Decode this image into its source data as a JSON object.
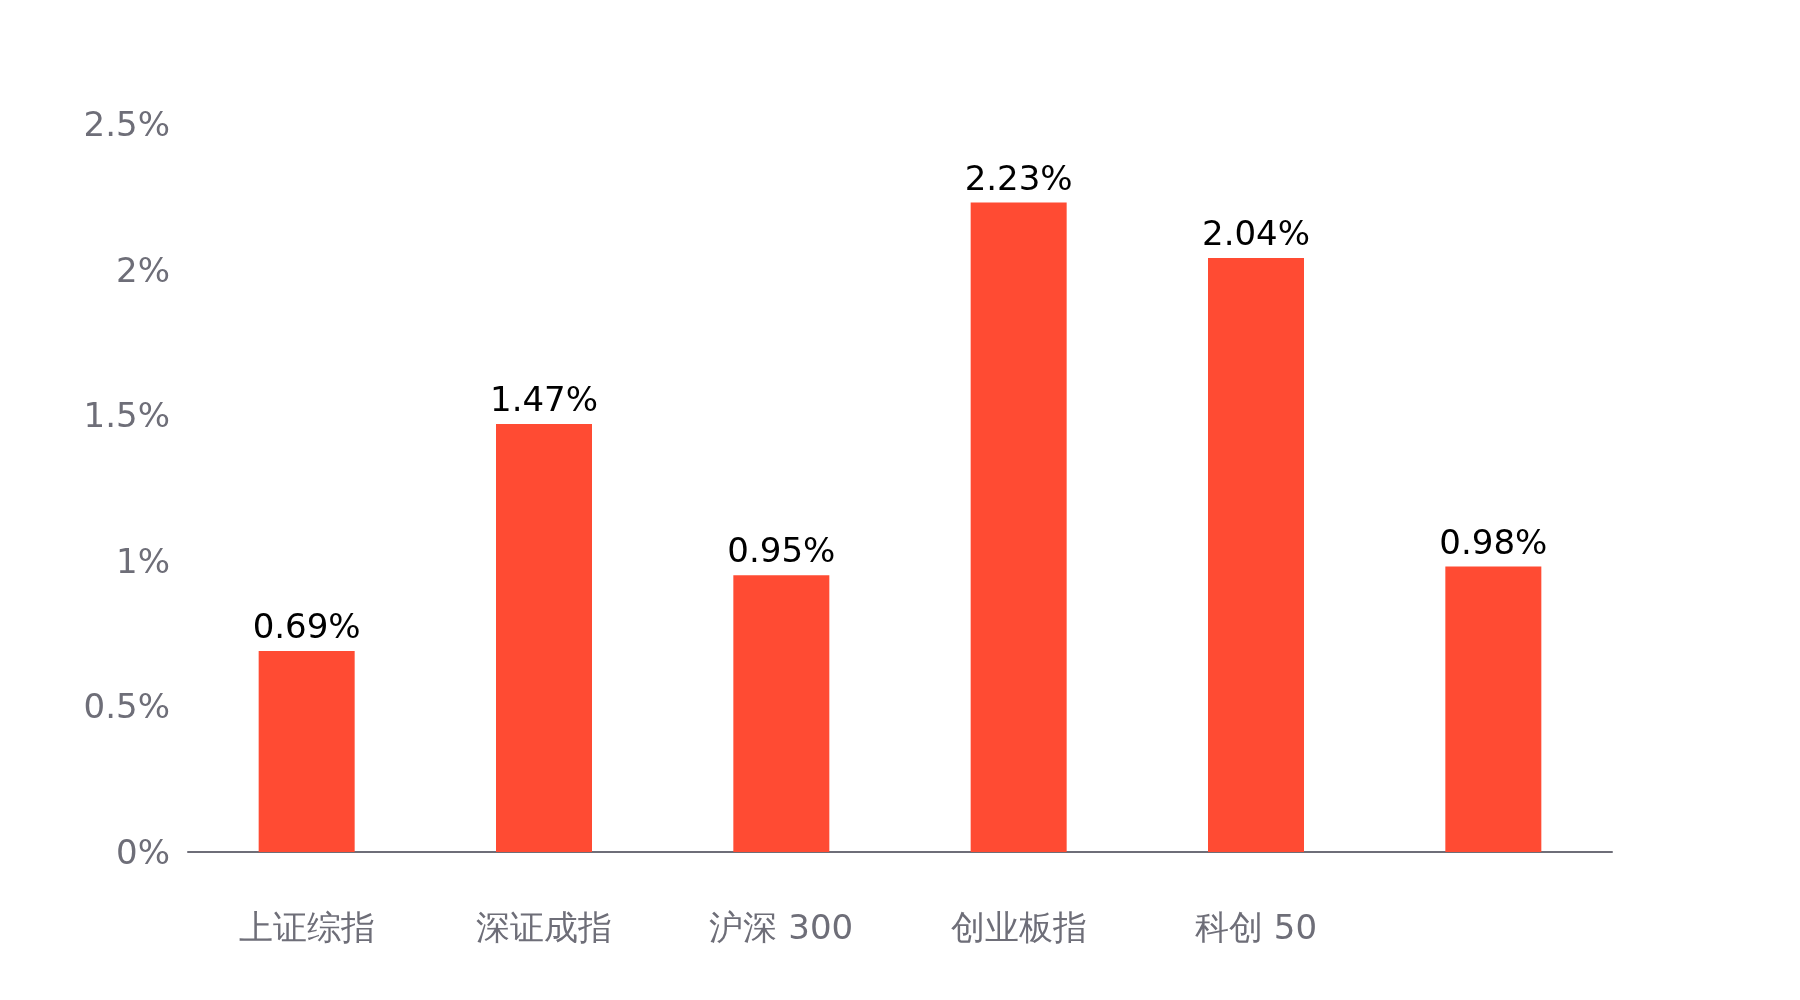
{
  "chart_data": {
    "type": "bar",
    "categories": [
      "上证综指",
      "深证成指",
      "沪深 300",
      "创业板指",
      "科创 50",
      null
    ],
    "values": [
      0.69,
      1.47,
      0.95,
      2.23,
      2.04,
      0.98
    ],
    "value_labels": [
      "0.69%",
      "1.47%",
      "0.95%",
      "2.23%",
      "2.04%",
      "0.98%"
    ],
    "color": "#ff4b33",
    "ylim": [
      0,
      2.5
    ],
    "yticks": [
      {
        "value": 0,
        "label": "0%"
      },
      {
        "value": 0.5,
        "label": "0.5%"
      },
      {
        "value": 1,
        "label": "1%"
      },
      {
        "value": 1.5,
        "label": "1.5%"
      },
      {
        "value": 2,
        "label": "2%"
      },
      {
        "value": 2.5,
        "label": "2.5%"
      }
    ],
    "grid": false
  }
}
